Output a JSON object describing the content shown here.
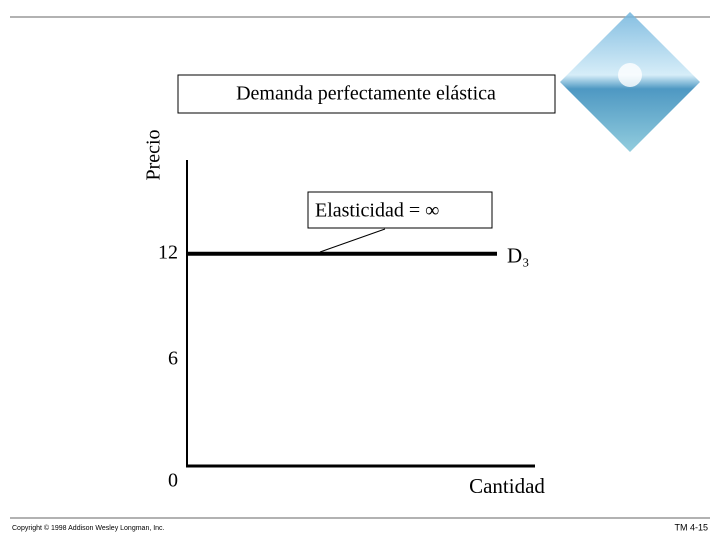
{
  "chart_data": {
    "type": "line",
    "title": "Demanda perfectamente elástica",
    "y_label": "Precio",
    "x_label": "Cantidad",
    "categories": [
      null,
      null
    ],
    "series": [
      {
        "name": "D₃",
        "color": "#000000",
        "values": [
          12,
          12
        ]
      }
    ],
    "ylim": [
      0,
      17.3
    ],
    "yticks": [
      0,
      6,
      12
    ],
    "annotation": "Elasticidad = ∞",
    "footer_left": "Copyright © 1998 Addison Wesley Longman, Inc.",
    "footer_right": "TM 4-15"
  }
}
